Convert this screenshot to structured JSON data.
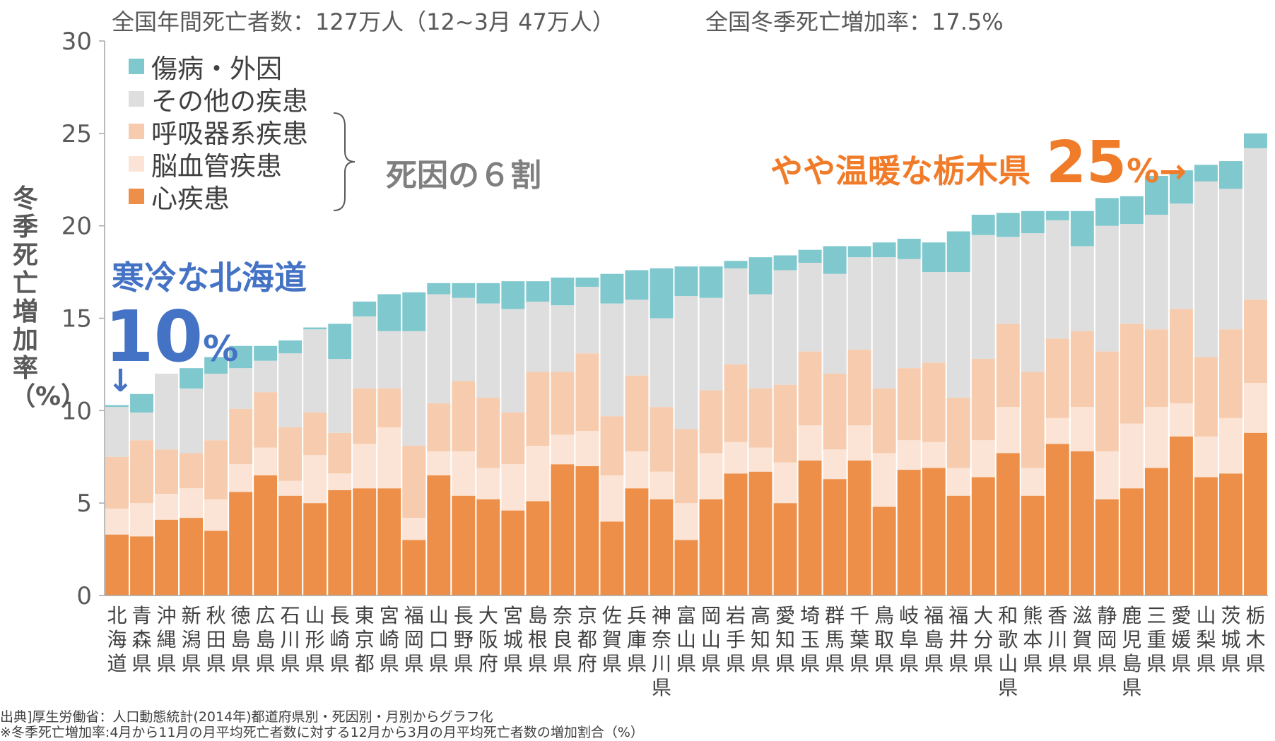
{
  "header": {
    "left": "全国年間死亡者数：127万人（12~3月 47万人）",
    "right": "全国冬季死亡増加率：17.5%"
  },
  "colors": {
    "injury": "#7fc8cd",
    "other": "#dedede",
    "respiratory": "#f7cbad",
    "cerebrovascular": "#fbe4d5",
    "heart": "#ed8f48",
    "cold_annotation": "#4472c4",
    "warm_annotation": "#f07c2a"
  },
  "brace_label": "死因の６割",
  "annotations": {
    "cold_text": "寒冷な北海道",
    "cold_pct_big": "10",
    "cold_pct_small": "%",
    "cold_arrow": "↓",
    "warm_text": "やや温暖な栃木県",
    "warm_pct_big": "25",
    "warm_pct_small": "%→"
  },
  "notes": {
    "source": "出典]厚生労働省：人口動態統計(2014年)都道府県別・死因別・月別からグラフ化",
    "definition": "※冬季死亡増加率:4月から11月の月平均死亡者数に対する12月から3月の月平均死亡者数の増加割合（%）"
  },
  "chart_data": {
    "type": "bar",
    "stacked": true,
    "ylabel": "冬季死亡増加率（%）",
    "ylim": [
      0,
      30
    ],
    "yticks": [
      0,
      5,
      10,
      15,
      20,
      25,
      30
    ],
    "grid": false,
    "legend_position": "top-left",
    "categories": [
      "北海道",
      "青森県",
      "沖縄県",
      "新潟県",
      "秋田県",
      "徳島県",
      "広島県",
      "石川県",
      "山形県",
      "長崎県",
      "東京都",
      "宮崎県",
      "福岡県",
      "山口県",
      "長野県",
      "大阪府",
      "宮城県",
      "島根県",
      "奈良県",
      "京都府",
      "佐賀県",
      "兵庫県",
      "神奈川県",
      "富山県",
      "岡山県",
      "岩手県",
      "高知県",
      "愛知県",
      "埼玉県",
      "群馬県",
      "千葉県",
      "鳥取県",
      "岐阜県",
      "福島県",
      "福井県",
      "大分県",
      "和歌山県",
      "熊本県",
      "香川県",
      "滋賀県",
      "静岡県",
      "鹿児島県",
      "三重県",
      "愛媛県",
      "山梨県",
      "茨城県",
      "栃木県"
    ],
    "series": [
      {
        "name": "心疾患",
        "values": [
          3.3,
          3.2,
          4.1,
          4.2,
          3.5,
          5.6,
          6.5,
          5.4,
          5.0,
          5.7,
          5.8,
          5.8,
          3.0,
          6.5,
          5.4,
          5.2,
          4.6,
          5.1,
          7.1,
          7.0,
          4.0,
          5.8,
          5.2,
          3.0,
          5.2,
          6.6,
          6.7,
          5.0,
          7.3,
          6.3,
          7.3,
          4.8,
          6.8,
          6.9,
          5.4,
          6.4,
          7.7,
          5.4,
          8.2,
          7.8,
          5.2,
          5.8,
          6.9,
          8.6,
          6.4,
          6.6,
          8.8
        ]
      },
      {
        "name": "脳血管疾患",
        "values": [
          1.4,
          1.8,
          1.4,
          1.6,
          1.7,
          1.5,
          1.5,
          0.8,
          2.6,
          0.9,
          2.4,
          3.3,
          1.2,
          1.3,
          2.4,
          1.7,
          2.5,
          3.0,
          1.6,
          1.9,
          2.5,
          2.0,
          1.5,
          2.0,
          2.5,
          1.7,
          1.3,
          2.2,
          1.9,
          1.6,
          1.9,
          2.9,
          1.6,
          1.4,
          1.5,
          2.0,
          2.5,
          1.5,
          1.4,
          2.4,
          2.6,
          3.5,
          3.3,
          1.8,
          2.2,
          3.0,
          2.7
        ]
      },
      {
        "name": "呼吸器系疾患",
        "values": [
          2.8,
          3.4,
          2.4,
          1.9,
          3.2,
          3.0,
          3.0,
          2.9,
          2.3,
          2.2,
          3.0,
          2.1,
          3.9,
          2.6,
          3.8,
          3.8,
          2.8,
          4.0,
          3.4,
          4.2,
          3.2,
          4.1,
          3.5,
          4.0,
          3.4,
          4.2,
          3.2,
          4.2,
          4.0,
          4.1,
          4.1,
          3.5,
          3.9,
          4.3,
          3.8,
          4.4,
          4.5,
          5.2,
          4.3,
          4.1,
          5.4,
          5.4,
          4.2,
          5.1,
          4.3,
          4.8,
          4.5
        ]
      },
      {
        "name": "その他の疾患",
        "values": [
          2.7,
          1.5,
          4.1,
          3.5,
          3.6,
          2.2,
          1.7,
          4.0,
          4.5,
          4.0,
          3.9,
          3.1,
          6.2,
          5.9,
          4.5,
          5.1,
          5.6,
          3.8,
          3.6,
          3.6,
          6.1,
          4.1,
          4.8,
          7.2,
          5.0,
          5.2,
          5.1,
          6.2,
          4.8,
          5.4,
          5.0,
          7.1,
          5.9,
          4.9,
          6.8,
          6.7,
          4.7,
          7.5,
          6.4,
          4.6,
          6.8,
          5.4,
          6.2,
          5.7,
          9.5,
          7.6,
          8.2
        ]
      },
      {
        "name": "傷病・外因",
        "values": [
          0.1,
          1.0,
          0.0,
          1.1,
          0.9,
          1.2,
          0.8,
          0.7,
          0.1,
          1.9,
          0.8,
          2.0,
          2.1,
          0.6,
          0.8,
          1.1,
          1.5,
          1.1,
          1.5,
          0.5,
          1.6,
          1.6,
          2.7,
          1.6,
          1.7,
          0.4,
          2.0,
          0.8,
          0.7,
          1.5,
          0.6,
          0.8,
          1.1,
          1.6,
          2.2,
          1.1,
          1.3,
          1.2,
          0.5,
          1.9,
          1.5,
          1.5,
          2.1,
          1.8,
          0.9,
          1.5,
          0.8
        ]
      }
    ]
  }
}
